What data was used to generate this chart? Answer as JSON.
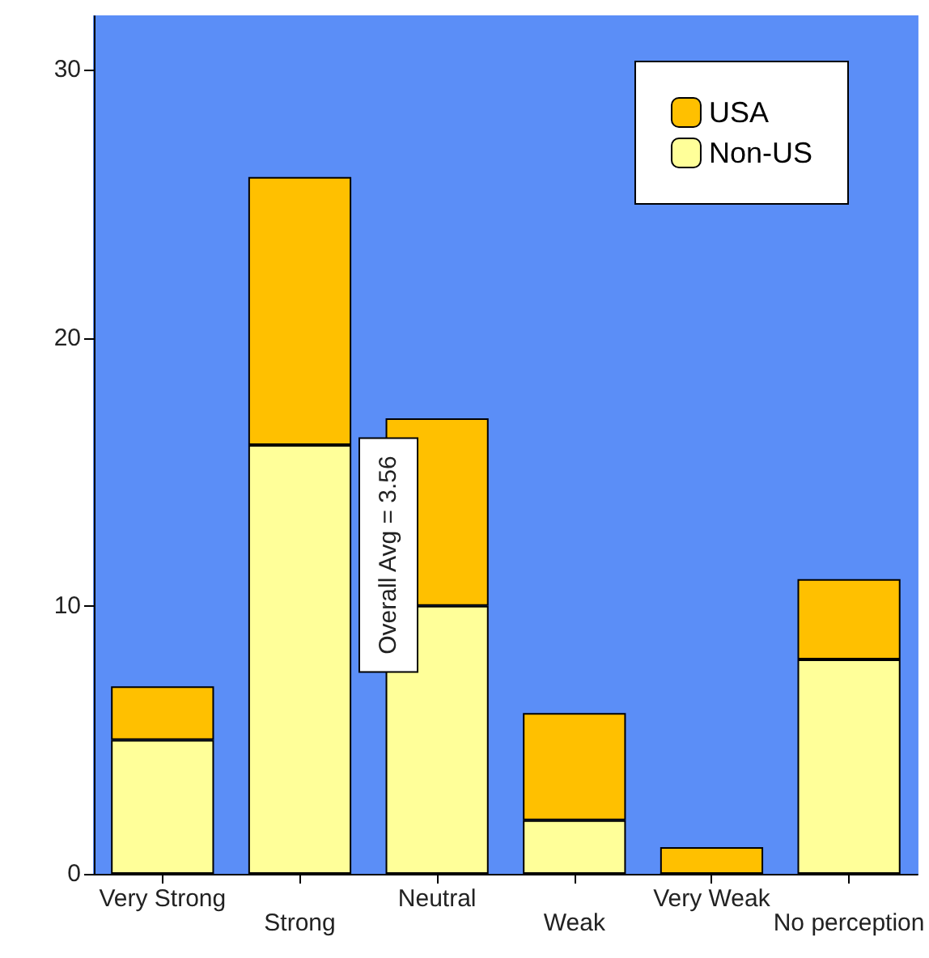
{
  "chart_data": {
    "type": "bar",
    "stacked": true,
    "categories": [
      "Very Strong",
      "Strong",
      "Neutral",
      "Weak",
      "Very Weak",
      "No perception"
    ],
    "series": [
      {
        "name": "Non-US",
        "color": "#ffff99",
        "values": [
          5,
          16,
          10,
          2,
          0,
          8
        ]
      },
      {
        "name": "USA",
        "color": "#ffc000",
        "values": [
          2,
          10,
          7,
          4,
          1,
          3
        ]
      }
    ],
    "ylim": [
      0,
      32
    ],
    "yticks": [
      0,
      10,
      20,
      30
    ],
    "grid": false,
    "legend": "top right",
    "annotations": [
      "Overall Avg = 3.56"
    ]
  }
}
